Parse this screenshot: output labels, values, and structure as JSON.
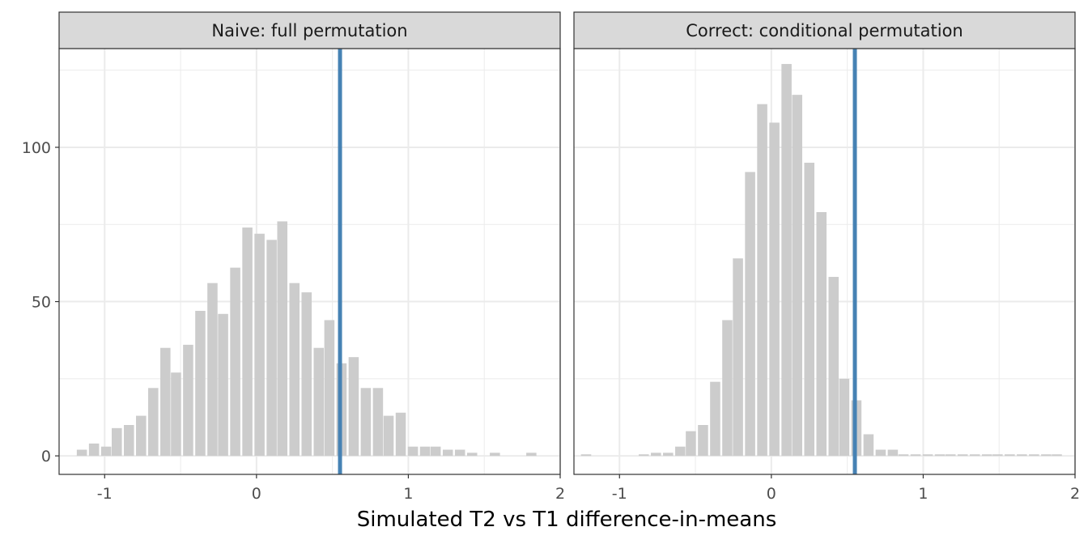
{
  "chart_data": {
    "type": "bar",
    "xlabel": "Simulated T2 vs T1 difference-in-means",
    "ylabel": "",
    "xlim": [
      -1.3,
      2.0
    ],
    "ylim": [
      -6,
      132
    ],
    "xticks": [
      -1,
      0,
      1,
      2
    ],
    "xtick_labels": [
      "-1",
      "0",
      "1",
      "2"
    ],
    "yticks": [
      0,
      50,
      100
    ],
    "ytick_labels": [
      "0",
      "50",
      "100"
    ],
    "grid": true,
    "legend": "none",
    "colors": {
      "bar": "#cccccc",
      "reference_line": "#4682b4",
      "strip": "#d9d9d9",
      "grid": "#ebebeb"
    },
    "bin_width": 0.0775,
    "reference_line_x": 0.55,
    "panels": [
      {
        "title": "Naive: full permutation",
        "bins": [
          [
            -1.15,
            2
          ],
          [
            -1.07,
            4
          ],
          [
            -0.99,
            3
          ],
          [
            -0.92,
            9
          ],
          [
            -0.84,
            10
          ],
          [
            -0.76,
            13
          ],
          [
            -0.68,
            22
          ],
          [
            -0.6,
            35
          ],
          [
            -0.53,
            27
          ],
          [
            -0.45,
            36
          ],
          [
            -0.37,
            47
          ],
          [
            -0.29,
            56
          ],
          [
            -0.22,
            46
          ],
          [
            -0.14,
            61
          ],
          [
            -0.06,
            74
          ],
          [
            0.02,
            72
          ],
          [
            0.1,
            70
          ],
          [
            0.17,
            76
          ],
          [
            0.25,
            56
          ],
          [
            0.33,
            53
          ],
          [
            0.41,
            35
          ],
          [
            0.48,
            44
          ],
          [
            0.56,
            30
          ],
          [
            0.64,
            32
          ],
          [
            0.72,
            22
          ],
          [
            0.8,
            22
          ],
          [
            0.87,
            13
          ],
          [
            0.95,
            14
          ],
          [
            1.03,
            3
          ],
          [
            1.11,
            3
          ],
          [
            1.18,
            3
          ],
          [
            1.26,
            2
          ],
          [
            1.34,
            2
          ],
          [
            1.42,
            1
          ],
          [
            1.57,
            1
          ],
          [
            1.81,
            1
          ]
        ]
      },
      {
        "title": "Correct: conditional permutation",
        "bins": [
          [
            -1.22,
            0.5
          ],
          [
            -0.84,
            0.5
          ],
          [
            -0.76,
            1
          ],
          [
            -0.68,
            1
          ],
          [
            -0.6,
            3
          ],
          [
            -0.53,
            8
          ],
          [
            -0.45,
            10
          ],
          [
            -0.37,
            24
          ],
          [
            -0.29,
            44
          ],
          [
            -0.22,
            64
          ],
          [
            -0.14,
            92
          ],
          [
            -0.06,
            114
          ],
          [
            0.02,
            108
          ],
          [
            0.1,
            127
          ],
          [
            0.17,
            117
          ],
          [
            0.25,
            95
          ],
          [
            0.33,
            79
          ],
          [
            0.41,
            58
          ],
          [
            0.48,
            25
          ],
          [
            0.56,
            18
          ],
          [
            0.64,
            7
          ],
          [
            0.72,
            2
          ],
          [
            0.8,
            2
          ],
          [
            0.87,
            0.5
          ],
          [
            0.95,
            0.5
          ],
          [
            1.03,
            0.5
          ],
          [
            1.11,
            0.5
          ],
          [
            1.18,
            0.5
          ],
          [
            1.26,
            0.5
          ],
          [
            1.34,
            0.5
          ],
          [
            1.42,
            0.5
          ],
          [
            1.49,
            0.5
          ],
          [
            1.57,
            0.5
          ],
          [
            1.65,
            0.5
          ],
          [
            1.73,
            0.5
          ],
          [
            1.81,
            0.5
          ],
          [
            1.88,
            0.5
          ]
        ]
      }
    ]
  }
}
